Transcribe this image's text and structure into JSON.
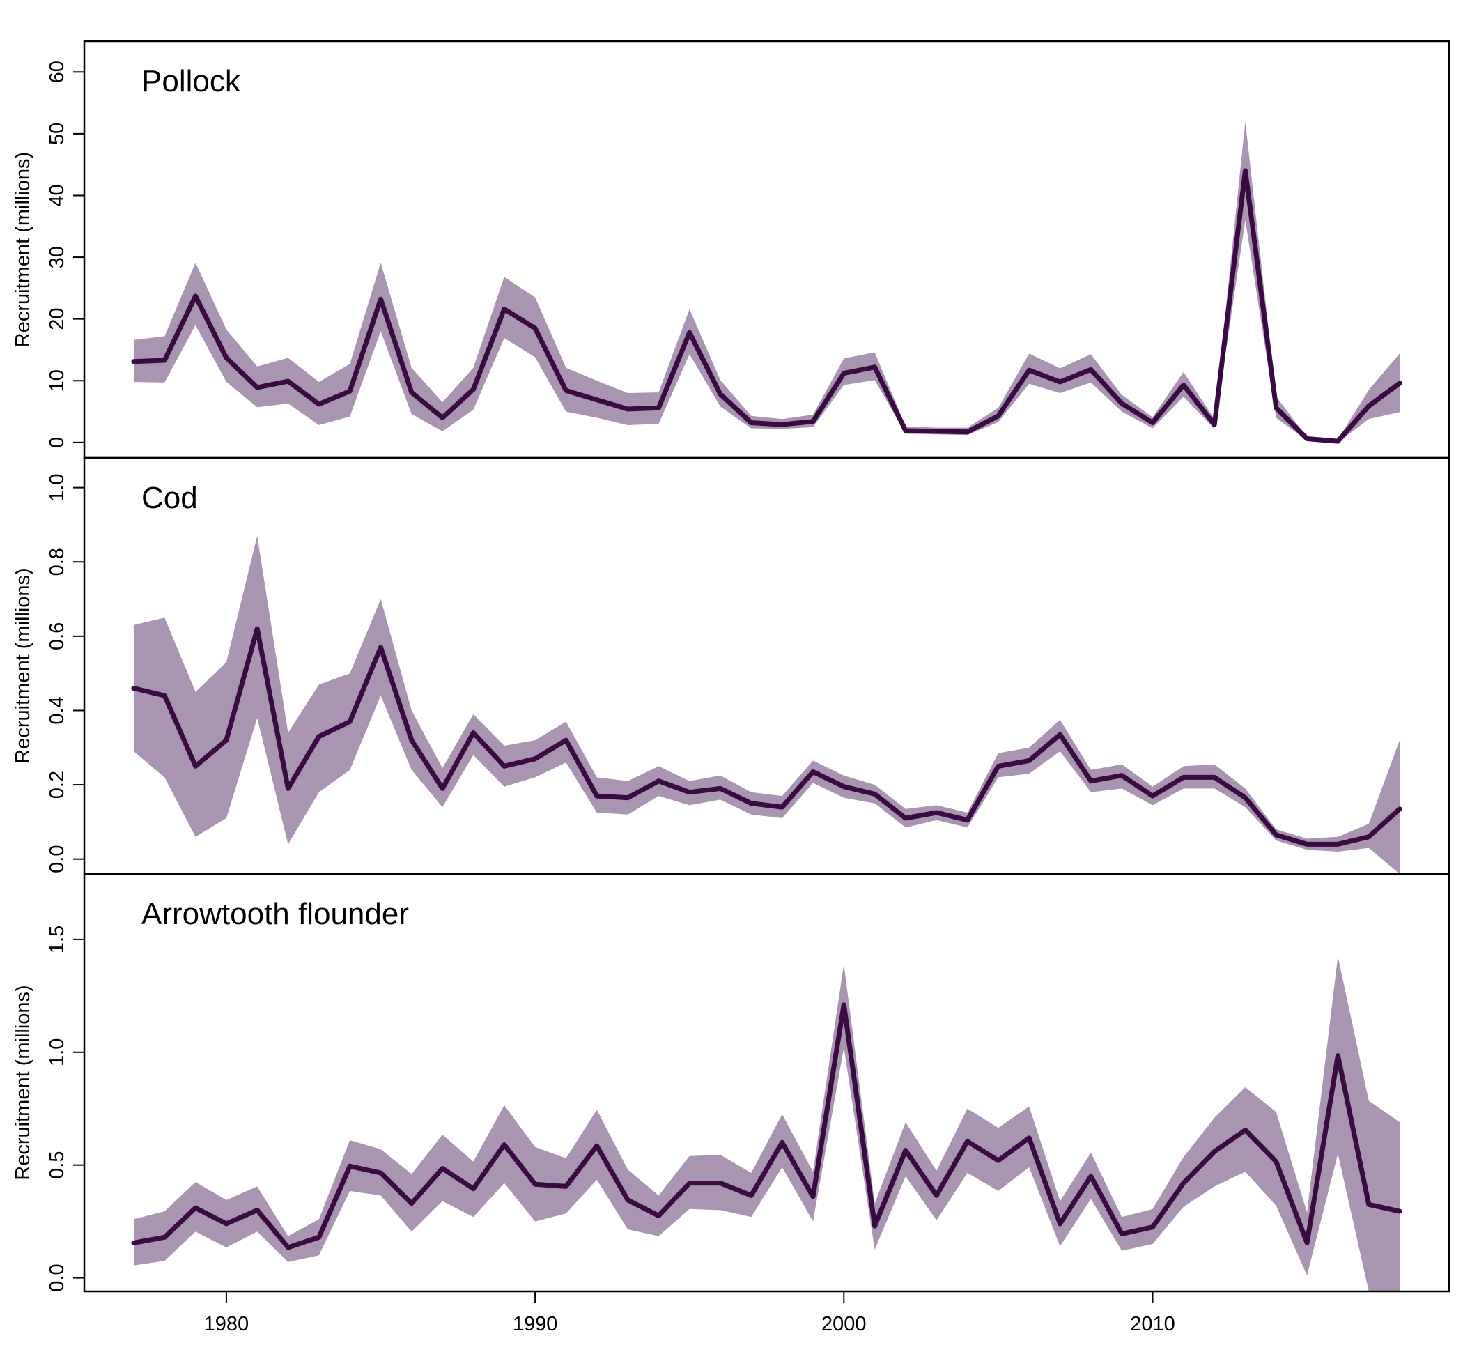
{
  "chart_data": [
    {
      "type": "area",
      "title": "Pollock",
      "xlabel": "",
      "ylabel": "Recruitment (millions)",
      "xlim": [
        1975.4,
        2019.6
      ],
      "ylim": [
        -2.5,
        65
      ],
      "x_ticks": [
        1980,
        1990,
        2000,
        2010
      ],
      "y_ticks": [
        0,
        10,
        20,
        30,
        40,
        50,
        60
      ],
      "grid": false,
      "line_color": "#3a0a42",
      "band_color": "#a995b2",
      "x": [
        1977,
        1978,
        1979,
        1980,
        1981,
        1982,
        1983,
        1984,
        1985,
        1986,
        1987,
        1988,
        1989,
        1990,
        1991,
        1992,
        1993,
        1994,
        1995,
        1996,
        1997,
        1998,
        1999,
        2000,
        2001,
        2002,
        2003,
        2004,
        2005,
        2006,
        2007,
        2008,
        2009,
        2010,
        2011,
        2012,
        2013,
        2014,
        2015,
        2016,
        2017,
        2018
      ],
      "series": [
        {
          "values": [
            13.1,
            13.3,
            23.7,
            13.7,
            8.9,
            9.9,
            6.2,
            8.3,
            23.2,
            8.1,
            4.0,
            8.6,
            21.6,
            18.5,
            8.4,
            6.9,
            5.4,
            5.6,
            17.8,
            7.8,
            3.2,
            2.9,
            3.4,
            11.2,
            12.2,
            1.9,
            1.8,
            1.7,
            4.3,
            11.7,
            9.8,
            11.8,
            6.3,
            3.2,
            9.3,
            2.9,
            44.0,
            5.6,
            0.6,
            0.2,
            5.9,
            9.6
          ],
          "lower": [
            9.8,
            9.7,
            19.0,
            9.8,
            5.7,
            6.3,
            2.8,
            4.2,
            18.0,
            4.6,
            1.8,
            5.3,
            16.9,
            13.8,
            5.0,
            4.0,
            2.8,
            3.0,
            14.3,
            5.8,
            2.3,
            2.2,
            2.5,
            9.3,
            10.1,
            1.4,
            1.3,
            1.2,
            3.3,
            9.5,
            8.0,
            9.7,
            5.0,
            2.3,
            7.4,
            2.2,
            36.0,
            4.0,
            0.3,
            0.0,
            3.8,
            4.9
          ],
          "upper": [
            16.6,
            17.2,
            29.1,
            18.3,
            12.3,
            13.7,
            9.8,
            12.7,
            29.1,
            12.1,
            6.5,
            12.1,
            26.8,
            23.5,
            12.1,
            10.0,
            8.0,
            8.1,
            21.6,
            10.1,
            4.3,
            3.8,
            4.5,
            13.6,
            14.6,
            2.6,
            2.4,
            2.4,
            5.6,
            14.4,
            12.0,
            14.3,
            7.7,
            4.1,
            11.4,
            3.8,
            52.0,
            7.4,
            0.9,
            0.5,
            8.5,
            14.4
          ]
        }
      ]
    },
    {
      "type": "area",
      "title": "Cod",
      "xlabel": "",
      "ylabel": "Recruitment (millions)",
      "xlim": [
        1975.4,
        2019.6
      ],
      "ylim": [
        -0.04,
        1.08
      ],
      "x_ticks": [
        1980,
        1990,
        2000,
        2010
      ],
      "y_ticks": [
        "0.0",
        "0.2",
        "0.4",
        "0.6",
        "0.8",
        "1.0"
      ],
      "grid": false,
      "line_color": "#3a0a42",
      "band_color": "#a995b2",
      "x": [
        1977,
        1978,
        1979,
        1980,
        1981,
        1982,
        1983,
        1984,
        1985,
        1986,
        1987,
        1988,
        1989,
        1990,
        1991,
        1992,
        1993,
        1994,
        1995,
        1996,
        1997,
        1998,
        1999,
        2000,
        2001,
        2002,
        2003,
        2004,
        2005,
        2006,
        2007,
        2008,
        2009,
        2010,
        2011,
        2012,
        2013,
        2014,
        2015,
        2016,
        2017,
        2018
      ],
      "series": [
        {
          "values": [
            0.46,
            0.44,
            0.25,
            0.32,
            0.62,
            0.19,
            0.33,
            0.37,
            0.57,
            0.32,
            0.19,
            0.34,
            0.25,
            0.27,
            0.32,
            0.17,
            0.165,
            0.21,
            0.18,
            0.19,
            0.15,
            0.14,
            0.235,
            0.195,
            0.175,
            0.11,
            0.125,
            0.105,
            0.25,
            0.265,
            0.335,
            0.21,
            0.225,
            0.17,
            0.22,
            0.22,
            0.165,
            0.065,
            0.04,
            0.04,
            0.06,
            0.135
          ],
          "lower": [
            0.29,
            0.22,
            0.06,
            0.11,
            0.38,
            0.04,
            0.18,
            0.24,
            0.44,
            0.24,
            0.14,
            0.28,
            0.195,
            0.22,
            0.26,
            0.125,
            0.12,
            0.17,
            0.145,
            0.16,
            0.12,
            0.11,
            0.205,
            0.165,
            0.15,
            0.085,
            0.105,
            0.085,
            0.22,
            0.23,
            0.29,
            0.18,
            0.19,
            0.145,
            0.19,
            0.19,
            0.14,
            0.05,
            0.025,
            0.02,
            0.03,
            -0.04
          ],
          "upper": [
            0.63,
            0.65,
            0.45,
            0.53,
            0.87,
            0.34,
            0.47,
            0.5,
            0.7,
            0.4,
            0.245,
            0.39,
            0.305,
            0.32,
            0.37,
            0.22,
            0.21,
            0.25,
            0.21,
            0.225,
            0.18,
            0.17,
            0.265,
            0.225,
            0.2,
            0.135,
            0.145,
            0.125,
            0.285,
            0.3,
            0.375,
            0.24,
            0.255,
            0.195,
            0.25,
            0.255,
            0.19,
            0.08,
            0.055,
            0.06,
            0.095,
            0.32
          ]
        }
      ]
    },
    {
      "type": "area",
      "title": "Arrowtooth flounder",
      "xlabel": "",
      "ylabel": "Recruitment (millions)",
      "xlim": [
        1975.4,
        2019.6
      ],
      "ylim": [
        -0.06,
        1.79
      ],
      "x_ticks": [
        1980,
        1990,
        2000,
        2010
      ],
      "y_ticks": [
        "0.0",
        "0.5",
        "1.0",
        "1.5"
      ],
      "grid": false,
      "line_color": "#3a0a42",
      "band_color": "#a995b2",
      "x": [
        1977,
        1978,
        1979,
        1980,
        1981,
        1982,
        1983,
        1984,
        1985,
        1986,
        1987,
        1988,
        1989,
        1990,
        1991,
        1992,
        1993,
        1994,
        1995,
        1996,
        1997,
        1998,
        1999,
        2000,
        2001,
        2002,
        2003,
        2004,
        2005,
        2006,
        2007,
        2008,
        2009,
        2010,
        2011,
        2012,
        2013,
        2014,
        2015,
        2016,
        2017,
        2018
      ],
      "series": [
        {
          "values": [
            0.155,
            0.18,
            0.31,
            0.24,
            0.3,
            0.135,
            0.18,
            0.495,
            0.465,
            0.33,
            0.485,
            0.395,
            0.59,
            0.415,
            0.405,
            0.585,
            0.345,
            0.275,
            0.42,
            0.42,
            0.365,
            0.6,
            0.36,
            1.21,
            0.23,
            0.565,
            0.365,
            0.605,
            0.52,
            0.62,
            0.24,
            0.45,
            0.195,
            0.225,
            0.42,
            0.56,
            0.655,
            0.515,
            0.155,
            0.985,
            0.325,
            0.295
          ],
          "lower": [
            0.055,
            0.075,
            0.205,
            0.135,
            0.205,
            0.07,
            0.1,
            0.385,
            0.365,
            0.205,
            0.34,
            0.27,
            0.42,
            0.25,
            0.285,
            0.435,
            0.215,
            0.185,
            0.305,
            0.3,
            0.27,
            0.49,
            0.25,
            1.02,
            0.125,
            0.45,
            0.255,
            0.465,
            0.385,
            0.49,
            0.14,
            0.35,
            0.12,
            0.15,
            0.315,
            0.405,
            0.47,
            0.32,
            0.01,
            0.55,
            -0.06,
            -0.06
          ],
          "upper": [
            0.26,
            0.295,
            0.425,
            0.345,
            0.405,
            0.185,
            0.26,
            0.61,
            0.57,
            0.46,
            0.635,
            0.515,
            0.765,
            0.58,
            0.53,
            0.745,
            0.48,
            0.365,
            0.54,
            0.545,
            0.465,
            0.725,
            0.47,
            1.39,
            0.33,
            0.69,
            0.475,
            0.75,
            0.665,
            0.76,
            0.34,
            0.555,
            0.27,
            0.305,
            0.535,
            0.71,
            0.845,
            0.735,
            0.29,
            1.425,
            0.785,
            0.69
          ]
        }
      ]
    }
  ]
}
